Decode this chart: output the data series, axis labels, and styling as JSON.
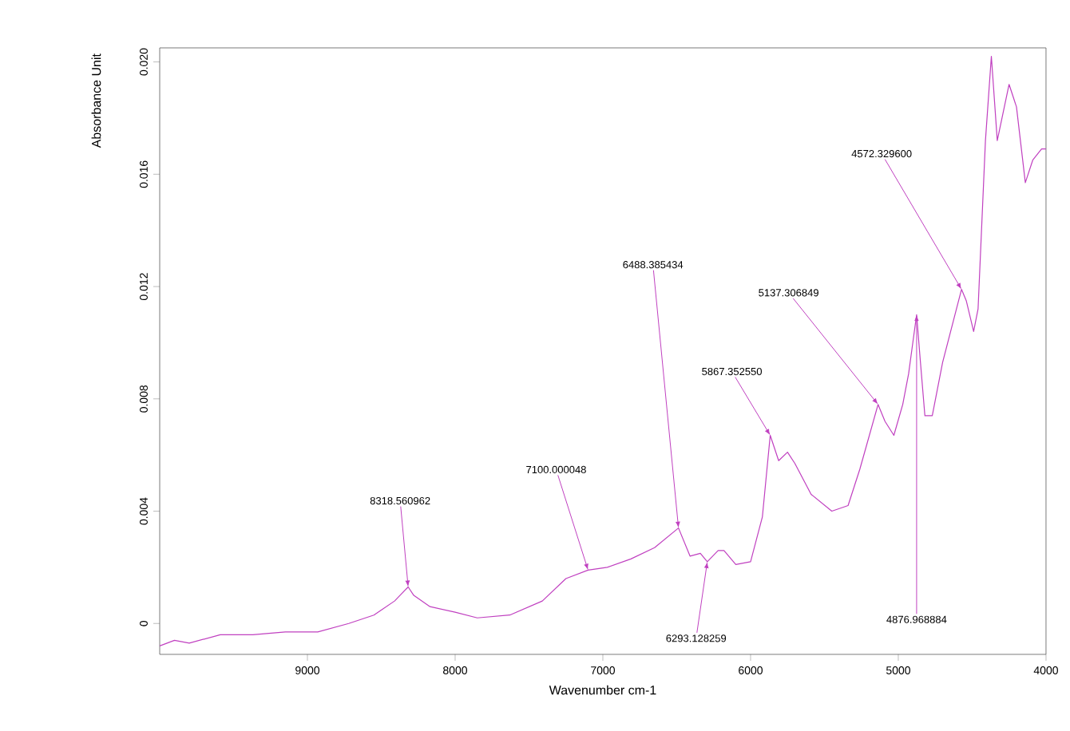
{
  "chart_data": {
    "type": "line",
    "xlabel": "Wavenumber cm-1",
    "ylabel": "Absorbance Unit",
    "xlim": [
      10000,
      4000
    ],
    "xticks": [
      9000,
      8000,
      7000,
      6000,
      5000,
      4000
    ],
    "ylim": [
      -0.0011,
      0.0205
    ],
    "yticks": [
      0,
      0.004,
      0.008,
      0.012,
      0.016,
      {
        "value": 0.02,
        "label": "0.020"
      }
    ],
    "grid": false,
    "series": [
      {
        "color": "#c040c0",
        "x": [
          10000,
          9900,
          9800,
          9590,
          9370,
          9150,
          8930,
          8720,
          8550,
          8410,
          8318,
          8280,
          8170,
          8000,
          7850,
          7630,
          7410,
          7250,
          7100,
          6970,
          6810,
          6650,
          6488,
          6410,
          6340,
          6293,
          6220,
          6180,
          6100,
          6000,
          5920,
          5867,
          5810,
          5750,
          5700,
          5590,
          5450,
          5340,
          5260,
          5137,
          5090,
          5030,
          4970,
          4930,
          4876,
          4850,
          4820,
          4770,
          4700,
          4572,
          4540,
          4490,
          4460,
          4410,
          4370,
          4330,
          4250,
          4200,
          4140,
          4090,
          4030,
          4000
        ],
        "values": [
          -0.0008,
          -0.0006,
          -0.0007,
          -0.0004,
          -0.0004,
          -0.0003,
          -0.0003,
          0.0,
          0.0003,
          0.0008,
          0.0013,
          0.001,
          0.0006,
          0.0004,
          0.0002,
          0.0003,
          0.0008,
          0.0016,
          0.0019,
          0.002,
          0.0023,
          0.0027,
          0.0034,
          0.0024,
          0.0025,
          0.0022,
          0.0026,
          0.0026,
          0.0021,
          0.0022,
          0.0038,
          0.0067,
          0.0058,
          0.0061,
          0.0057,
          0.0046,
          0.004,
          0.0042,
          0.0055,
          0.0078,
          0.0072,
          0.0067,
          0.0078,
          0.0089,
          0.011,
          0.0093,
          0.0074,
          0.0074,
          0.0093,
          0.0119,
          0.0115,
          0.0104,
          0.0112,
          0.0172,
          0.0202,
          0.0172,
          0.0192,
          0.0184,
          0.0157,
          0.0165,
          0.0169,
          0.0169
        ]
      }
    ],
    "annotations": [
      {
        "text": "8318.560962",
        "x": 8318,
        "y": 0.0013
      },
      {
        "text": "7100.000048",
        "x": 7100,
        "y": 0.0019
      },
      {
        "text": "6488.385434",
        "x": 6488,
        "y": 0.0034
      },
      {
        "text": "6293.128259",
        "x": 6293,
        "y": 0.0022
      },
      {
        "text": "5867.352550",
        "x": 5867,
        "y": 0.0067
      },
      {
        "text": "5137.306849",
        "x": 5137,
        "y": 0.0078
      },
      {
        "text": "4876.968884",
        "x": 4876,
        "y": 0.011
      },
      {
        "text": "4572.329600",
        "x": 4572,
        "y": 0.0119
      }
    ]
  }
}
